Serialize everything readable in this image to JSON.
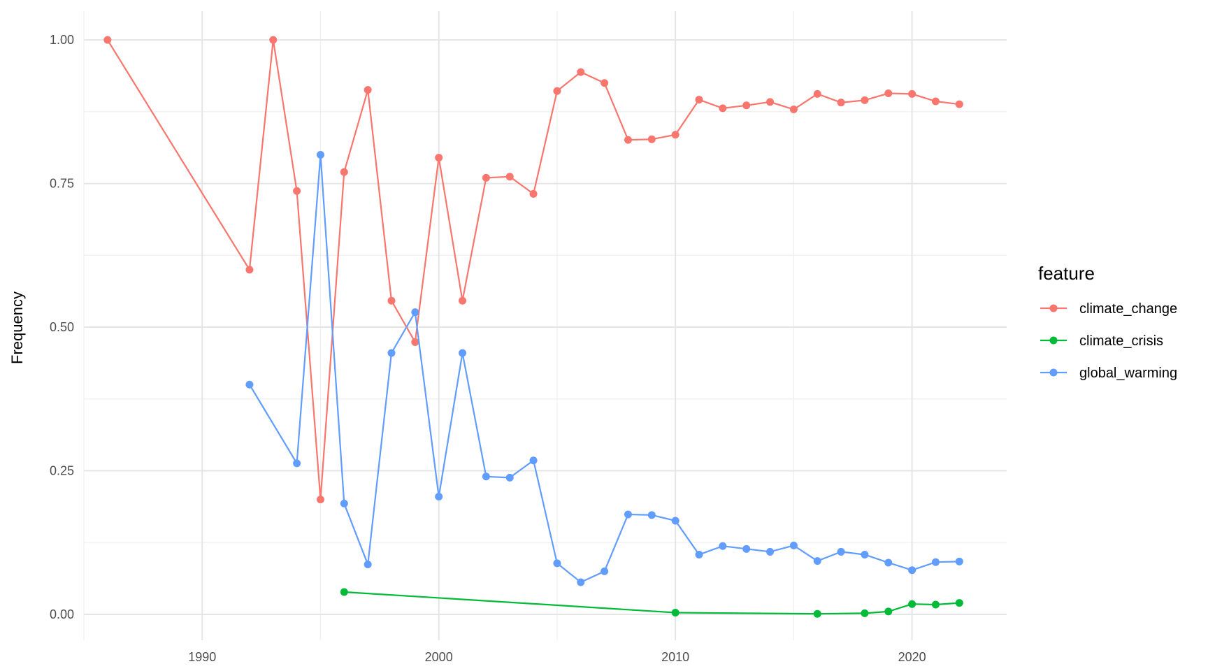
{
  "chart_data": {
    "type": "line",
    "xlabel": "",
    "ylabel": "Frequency",
    "xlim": [
      1985,
      2024
    ],
    "ylim": [
      -0.045,
      1.05
    ],
    "x_ticks": [
      1990,
      2000,
      2010,
      2020
    ],
    "x_tick_labels": [
      "1990",
      "2000",
      "2010",
      "2020"
    ],
    "y_ticks": [
      0,
      0.25,
      0.5,
      0.75,
      1
    ],
    "y_tick_labels": [
      "0.00",
      "0.25",
      "0.50",
      "0.75",
      "1.00"
    ],
    "grid": true,
    "legend": {
      "title": "feature",
      "position": "right"
    },
    "series": [
      {
        "name": "climate_change",
        "color": "#F8766D",
        "points": [
          [
            1986,
            1.0
          ],
          [
            1992,
            0.6
          ],
          [
            1993,
            1.0
          ],
          [
            1994,
            0.737
          ],
          [
            1995,
            0.2
          ],
          [
            1996,
            0.77
          ],
          [
            1997,
            0.913
          ],
          [
            1998,
            0.546
          ],
          [
            1999,
            0.474
          ],
          [
            2000,
            0.795
          ],
          [
            2001,
            0.546
          ],
          [
            2002,
            0.76
          ],
          [
            2003,
            0.762
          ],
          [
            2004,
            0.732
          ],
          [
            2005,
            0.911
          ],
          [
            2006,
            0.944
          ],
          [
            2007,
            0.925
          ],
          [
            2008,
            0.826
          ],
          [
            2009,
            0.827
          ],
          [
            2010,
            0.835
          ],
          [
            2011,
            0.896
          ],
          [
            2012,
            0.881
          ],
          [
            2013,
            0.886
          ],
          [
            2014,
            0.892
          ],
          [
            2015,
            0.879
          ],
          [
            2016,
            0.906
          ],
          [
            2017,
            0.891
          ],
          [
            2018,
            0.895
          ],
          [
            2019,
            0.907
          ],
          [
            2020,
            0.906
          ],
          [
            2021,
            0.893
          ],
          [
            2022,
            0.888
          ]
        ]
      },
      {
        "name": "climate_crisis",
        "color": "#00BA38",
        "points": [
          [
            1996,
            0.039
          ],
          [
            2010,
            0.003
          ],
          [
            2016,
            0.001
          ],
          [
            2018,
            0.002
          ],
          [
            2019,
            0.005
          ],
          [
            2020,
            0.018
          ],
          [
            2021,
            0.017
          ],
          [
            2022,
            0.02
          ]
        ]
      },
      {
        "name": "global_warming",
        "color": "#619CFF",
        "points": [
          [
            1992,
            0.4
          ],
          [
            1994,
            0.263
          ],
          [
            1995,
            0.8
          ],
          [
            1996,
            0.193
          ],
          [
            1997,
            0.087
          ],
          [
            1998,
            0.455
          ],
          [
            1999,
            0.526
          ],
          [
            2000,
            0.205
          ],
          [
            2001,
            0.455
          ],
          [
            2002,
            0.24
          ],
          [
            2003,
            0.238
          ],
          [
            2004,
            0.268
          ],
          [
            2005,
            0.089
          ],
          [
            2006,
            0.056
          ],
          [
            2007,
            0.075
          ],
          [
            2008,
            0.174
          ],
          [
            2009,
            0.173
          ],
          [
            2010,
            0.163
          ],
          [
            2011,
            0.104
          ],
          [
            2012,
            0.119
          ],
          [
            2013,
            0.114
          ],
          [
            2014,
            0.109
          ],
          [
            2015,
            0.12
          ],
          [
            2016,
            0.093
          ],
          [
            2017,
            0.109
          ],
          [
            2018,
            0.104
          ],
          [
            2019,
            0.09
          ],
          [
            2020,
            0.077
          ],
          [
            2021,
            0.091
          ],
          [
            2022,
            0.092
          ]
        ]
      }
    ]
  }
}
